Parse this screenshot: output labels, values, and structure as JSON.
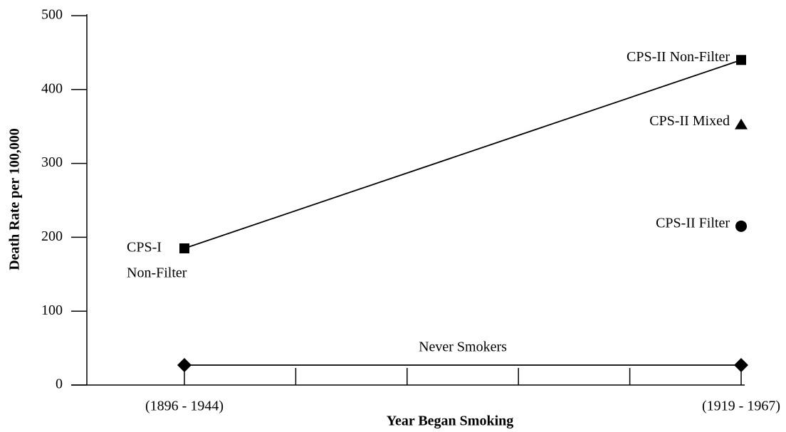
{
  "chart_data": {
    "type": "line",
    "xlabel": "Year Began Smoking",
    "ylabel": "Death Rate per 100,000",
    "xlim": [
      0,
      5
    ],
    "xticks": [
      {
        "value": 0,
        "label": "(1896 - 1944)"
      },
      {
        "value": 1,
        "label": null
      },
      {
        "value": 2,
        "label": null
      },
      {
        "value": 3,
        "label": null
      },
      {
        "value": 4,
        "label": null
      },
      {
        "value": 5,
        "label": "(1919 - 1967)"
      }
    ],
    "ylim": [
      0,
      500
    ],
    "yticks": [
      0,
      100,
      200,
      300,
      400,
      500
    ],
    "series": [
      {
        "color": "#000000",
        "marker": "square",
        "line": true,
        "x": [
          0,
          5
        ],
        "values": [
          185,
          440
        ],
        "point_labels": [
          [
            "CPS-I",
            "Non-Filter"
          ],
          [
            "CPS-II Non-Filter"
          ]
        ]
      },
      {
        "color": "#000000",
        "marker": "triangle",
        "line": false,
        "x": [
          5
        ],
        "values": [
          353
        ],
        "point_labels": [
          [
            "CPS-II Mixed"
          ]
        ]
      },
      {
        "color": "#000000",
        "marker": "circle",
        "line": false,
        "x": [
          5
        ],
        "values": [
          215
        ],
        "point_labels": [
          [
            "CPS-II Filter"
          ]
        ]
      },
      {
        "name": "Never Smokers",
        "color": "#000000",
        "marker": "diamond",
        "line": true,
        "x": [
          0,
          5
        ],
        "values": [
          27,
          27
        ]
      }
    ]
  }
}
